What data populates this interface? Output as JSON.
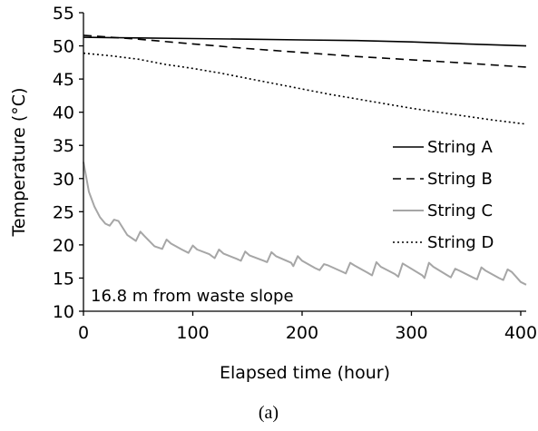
{
  "chart_data": {
    "type": "line",
    "title": "",
    "xlabel": "Elapsed time (hour)",
    "ylabel": "Temperature (°C)",
    "xlim": [
      0,
      405
    ],
    "ylim": [
      10,
      55
    ],
    "xticks": [
      0,
      100,
      200,
      300,
      400
    ],
    "yticks": [
      10,
      15,
      20,
      25,
      30,
      35,
      40,
      45,
      50,
      55
    ],
    "grid": false,
    "legend_position": "right-center",
    "annotation": "16.8 m from waste slope",
    "caption": "(a)",
    "series": [
      {
        "name": "String A",
        "color": "#000000",
        "dash": "solid",
        "x": [
          0,
          50,
          100,
          150,
          200,
          250,
          300,
          350,
          405
        ],
        "y": [
          51.3,
          51.2,
          51.1,
          51.0,
          50.9,
          50.8,
          50.6,
          50.3,
          50.0
        ]
      },
      {
        "name": "String B",
        "color": "#000000",
        "dash": "dashed",
        "x": [
          0,
          50,
          100,
          150,
          200,
          250,
          300,
          350,
          405
        ],
        "y": [
          51.6,
          51.0,
          50.3,
          49.6,
          49.0,
          48.4,
          47.9,
          47.4,
          46.8
        ]
      },
      {
        "name": "String C",
        "color": "#a6a6a6",
        "dash": "solid",
        "x": [
          0,
          5,
          10,
          15,
          20,
          24,
          28,
          32,
          40,
          48,
          52,
          56,
          65,
          72,
          76,
          80,
          90,
          96,
          100,
          104,
          115,
          120,
          124,
          128,
          140,
          144,
          148,
          152,
          165,
          168,
          172,
          176,
          190,
          192,
          196,
          200,
          212,
          216,
          220,
          224,
          236,
          240,
          244,
          248,
          260,
          264,
          268,
          272,
          285,
          288,
          292,
          296,
          310,
          312,
          316,
          320,
          333,
          336,
          340,
          344,
          356,
          360,
          364,
          368,
          380,
          384,
          388,
          392,
          400,
          405
        ],
        "y": [
          32.5,
          28.0,
          25.8,
          24.2,
          23.2,
          22.9,
          23.8,
          23.6,
          21.5,
          20.6,
          22.0,
          21.3,
          19.8,
          19.4,
          20.8,
          20.2,
          19.3,
          18.8,
          19.9,
          19.3,
          18.6,
          18.0,
          19.3,
          18.7,
          17.9,
          17.6,
          19.0,
          18.4,
          17.6,
          17.4,
          18.9,
          18.3,
          17.3,
          16.8,
          18.3,
          17.6,
          16.5,
          16.2,
          17.1,
          16.9,
          16.0,
          15.7,
          17.3,
          16.9,
          15.8,
          15.4,
          17.4,
          16.7,
          15.6,
          15.2,
          17.2,
          16.8,
          15.4,
          15.0,
          17.3,
          16.7,
          15.4,
          15.1,
          16.4,
          16.1,
          15.1,
          14.8,
          16.6,
          16.1,
          15.0,
          14.7,
          16.3,
          15.9,
          14.4,
          14.0
        ]
      },
      {
        "name": "String D",
        "color": "#000000",
        "dash": "dotted",
        "x": [
          0,
          25,
          50,
          75,
          100,
          125,
          150,
          175,
          200,
          225,
          250,
          275,
          300,
          325,
          350,
          375,
          405
        ],
        "y": [
          48.9,
          48.5,
          48.0,
          47.2,
          46.6,
          45.9,
          45.1,
          44.3,
          43.5,
          42.7,
          42.0,
          41.3,
          40.6,
          40.0,
          39.4,
          38.8,
          38.2
        ]
      }
    ]
  }
}
